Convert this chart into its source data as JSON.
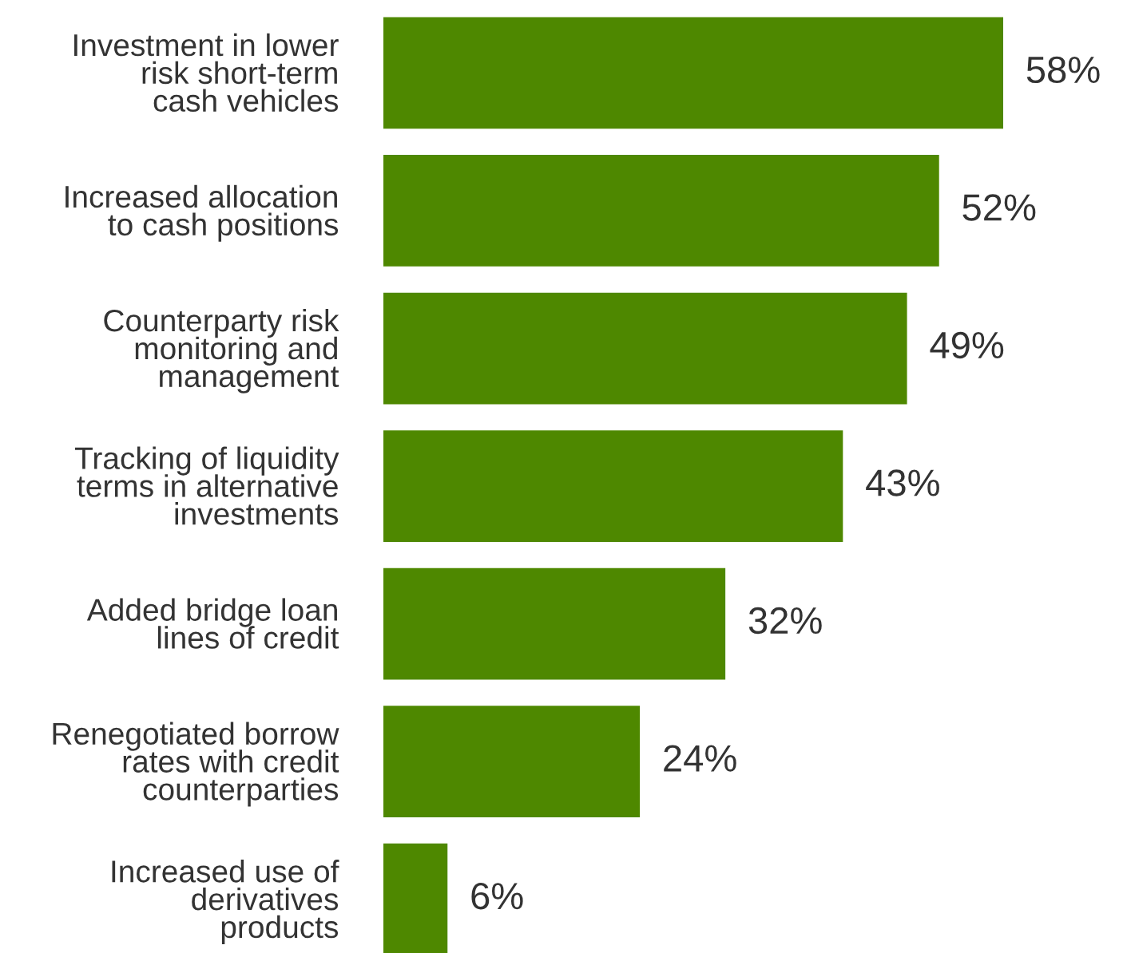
{
  "chart_data": {
    "type": "bar",
    "orientation": "horizontal",
    "categories": [
      "Investment in lower\nrisk short-term\ncash vehicles",
      "Increased allocation\nto cash positions",
      "Counterparty risk\nmonitoring and\nmanagement",
      "Tracking of liquidity\nterms in alternative\ninvestments",
      "Added bridge loan\nlines of credit",
      "Renegotiated borrow\nrates with credit\ncounterparties",
      "Increased use of\nderivatives\nproducts"
    ],
    "values": [
      58,
      52,
      49,
      43,
      32,
      24,
      6
    ],
    "value_labels": [
      "58%",
      "52%",
      "49%",
      "43%",
      "32%",
      "24%",
      "6%"
    ],
    "color": "#4e8800",
    "grid": false
  }
}
